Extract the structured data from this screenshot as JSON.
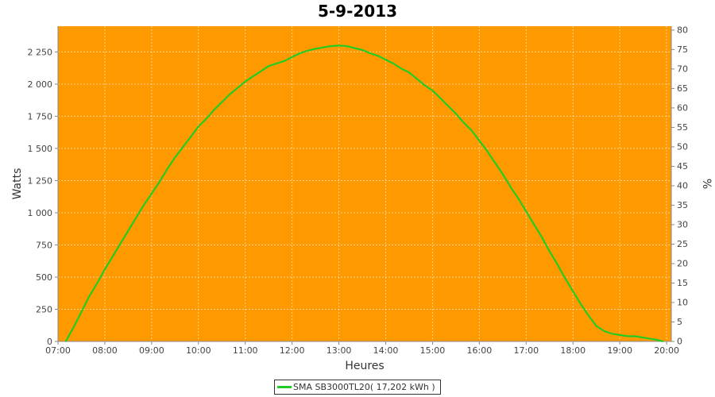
{
  "chart_data": {
    "type": "line",
    "title": "5-9-2013",
    "xlabel": "Heures",
    "ylabel": "Watts",
    "y2label": "%",
    "xlim": [
      7.0,
      20.1
    ],
    "ylim": [
      0,
      2450
    ],
    "y2lim": [
      0,
      81
    ],
    "x_ticks": [
      "07:00",
      "08:00",
      "09:00",
      "10:00",
      "11:00",
      "12:00",
      "13:00",
      "14:00",
      "15:00",
      "16:00",
      "17:00",
      "18:00",
      "19:00",
      "20:00"
    ],
    "y_ticks": [
      "0",
      "250",
      "500",
      "750",
      "1 000",
      "1 250",
      "1 500",
      "1 750",
      "2 000",
      "2 250"
    ],
    "y2_ticks": [
      "0",
      "5",
      "10",
      "15",
      "20",
      "25",
      "30",
      "35",
      "40",
      "45",
      "50",
      "55",
      "60",
      "65",
      "70",
      "75",
      "80"
    ],
    "grid": true,
    "plot_background": "#ff9900",
    "legend_position": "bottom",
    "series": [
      {
        "name": "SMA SB3000TL20( 17,202 kWh )",
        "color": "#22cc22",
        "points": [
          [
            "07:10",
            0
          ],
          [
            "07:20",
            110
          ],
          [
            "07:30",
            230
          ],
          [
            "07:40",
            350
          ],
          [
            "07:50",
            450
          ],
          [
            "08:00",
            560
          ],
          [
            "08:10",
            660
          ],
          [
            "08:20",
            760
          ],
          [
            "08:30",
            860
          ],
          [
            "08:40",
            960
          ],
          [
            "08:50",
            1060
          ],
          [
            "09:00",
            1150
          ],
          [
            "09:10",
            1240
          ],
          [
            "09:20",
            1340
          ],
          [
            "09:30",
            1430
          ],
          [
            "09:40",
            1510
          ],
          [
            "09:50",
            1590
          ],
          [
            "10:00",
            1670
          ],
          [
            "10:10",
            1730
          ],
          [
            "10:20",
            1800
          ],
          [
            "10:30",
            1860
          ],
          [
            "10:40",
            1920
          ],
          [
            "10:50",
            1970
          ],
          [
            "11:00",
            2020
          ],
          [
            "11:10",
            2060
          ],
          [
            "11:20",
            2100
          ],
          [
            "11:30",
            2140
          ],
          [
            "11:40",
            2160
          ],
          [
            "11:50",
            2180
          ],
          [
            "12:00",
            2210
          ],
          [
            "12:10",
            2240
          ],
          [
            "12:20",
            2260
          ],
          [
            "12:30",
            2275
          ],
          [
            "12:40",
            2285
          ],
          [
            "12:50",
            2295
          ],
          [
            "13:00",
            2300
          ],
          [
            "13:10",
            2295
          ],
          [
            "13:20",
            2280
          ],
          [
            "13:30",
            2265
          ],
          [
            "13:40",
            2240
          ],
          [
            "13:50",
            2220
          ],
          [
            "14:00",
            2190
          ],
          [
            "14:10",
            2160
          ],
          [
            "14:20",
            2120
          ],
          [
            "14:30",
            2090
          ],
          [
            "14:40",
            2040
          ],
          [
            "14:50",
            1990
          ],
          [
            "15:00",
            1950
          ],
          [
            "15:10",
            1890
          ],
          [
            "15:20",
            1830
          ],
          [
            "15:30",
            1770
          ],
          [
            "15:40",
            1700
          ],
          [
            "15:50",
            1640
          ],
          [
            "16:00",
            1560
          ],
          [
            "16:10",
            1480
          ],
          [
            "16:20",
            1390
          ],
          [
            "16:30",
            1300
          ],
          [
            "16:40",
            1200
          ],
          [
            "16:50",
            1110
          ],
          [
            "17:00",
            1010
          ],
          [
            "17:10",
            910
          ],
          [
            "17:20",
            810
          ],
          [
            "17:30",
            700
          ],
          [
            "17:40",
            600
          ],
          [
            "17:50",
            490
          ],
          [
            "18:00",
            390
          ],
          [
            "18:10",
            290
          ],
          [
            "18:20",
            200
          ],
          [
            "18:30",
            120
          ],
          [
            "18:40",
            80
          ],
          [
            "18:50",
            60
          ],
          [
            "19:00",
            50
          ],
          [
            "19:10",
            40
          ],
          [
            "19:20",
            40
          ],
          [
            "19:30",
            30
          ],
          [
            "19:40",
            20
          ],
          [
            "19:50",
            10
          ],
          [
            "19:55",
            0
          ]
        ]
      }
    ]
  }
}
